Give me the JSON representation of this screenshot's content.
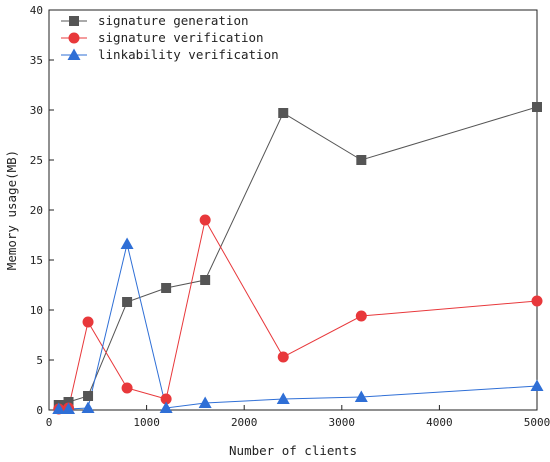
{
  "chart_data": {
    "type": "line",
    "title": "",
    "xlabel": "Number of clients",
    "ylabel": "Memory usage(MB)",
    "xlim": [
      0,
      5000
    ],
    "ylim": [
      0,
      40
    ],
    "xticks": [
      0,
      1000,
      2000,
      3000,
      4000,
      5000
    ],
    "yticks": [
      0,
      5,
      10,
      15,
      20,
      25,
      30,
      35,
      40
    ],
    "grid": false,
    "legend_position": "top-left",
    "series": [
      {
        "name": "signature generation",
        "color": "#555555",
        "marker": "square",
        "x": [
          100,
          200,
          400,
          800,
          1200,
          1600,
          2400,
          3200,
          5000
        ],
        "y": [
          0.5,
          0.8,
          1.4,
          10.8,
          12.2,
          13.0,
          29.7,
          25.0,
          30.3
        ]
      },
      {
        "name": "signature verification",
        "color": "#e8383b",
        "marker": "circle",
        "x": [
          100,
          200,
          400,
          800,
          1200,
          1600,
          2400,
          3200,
          5000
        ],
        "y": [
          0.1,
          0.2,
          8.8,
          2.2,
          1.1,
          19.0,
          5.3,
          9.4,
          10.9
        ]
      },
      {
        "name": "linkability verification",
        "color": "#2f6fd6",
        "marker": "triangle",
        "x": [
          100,
          200,
          400,
          800,
          1200,
          1600,
          2400,
          3200,
          5000
        ],
        "y": [
          0.1,
          0.1,
          0.2,
          16.6,
          0.2,
          0.7,
          1.1,
          1.3,
          2.4
        ]
      }
    ]
  }
}
